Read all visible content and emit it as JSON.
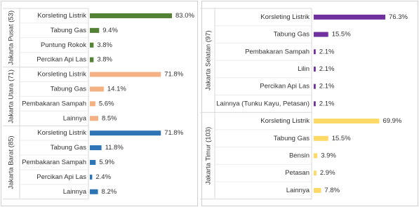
{
  "chart_data": [
    {
      "type": "bar",
      "orientation": "horizontal",
      "groups": [
        {
          "name": "Jakarta Pusat (53)",
          "color": "#548235",
          "categories": [
            "Korsleting Listrik",
            "Tabung Gas",
            "Puntung Rokok",
            "Percikan Api Las"
          ],
          "values": [
            83.0,
            9.4,
            3.8,
            3.8
          ],
          "value_labels": [
            "83.0%",
            "9.4%",
            "3.8%",
            "3.8%"
          ]
        },
        {
          "name": "Jakarta Utara (71)",
          "color": "#f4b183",
          "categories": [
            "Korsleting Listrik",
            "Tabung Gas",
            "Pembakaran Sampah",
            "Lainnya"
          ],
          "values": [
            71.8,
            14.1,
            5.6,
            8.5
          ],
          "value_labels": [
            "71.8%",
            "14.1%",
            "5.6%",
            "8.5%"
          ]
        },
        {
          "name": "Jakarta Barat (85)",
          "color": "#2e75b6",
          "categories": [
            "Korsleting Listrik",
            "Tabung Gas",
            "Pembakaran Sampah",
            "Percikan Api Las",
            "Lainnya"
          ],
          "values": [
            71.8,
            11.8,
            5.9,
            2.4,
            8.2
          ],
          "value_labels": [
            "71.8%",
            "11.8%",
            "5.9%",
            "2.4%",
            "8.2%"
          ]
        }
      ]
    },
    {
      "type": "bar",
      "orientation": "horizontal",
      "groups": [
        {
          "name": "Jakarta Selatan (97)",
          "color": "#7030a0",
          "categories": [
            "Korsleting Listrik",
            "Tabung Gas",
            "Pembakaran Sampah",
            "Lilin",
            "Percikan Api Las",
            "Lainnya (Tunku Kayu, Petasan)"
          ],
          "values": [
            76.3,
            15.5,
            2.1,
            2.1,
            2.1,
            2.1
          ],
          "value_labels": [
            "76.3%",
            "15.5%",
            "2.1%",
            "2.1%",
            "2.1%",
            "2.1%"
          ]
        },
        {
          "name": "Jakarta Timur (103)",
          "color": "#ffd966",
          "categories": [
            "Korsleting Listrik",
            "Tabung Gas",
            "Bensin",
            "Petasan",
            "Lainnya"
          ],
          "values": [
            69.9,
            15.5,
            3.9,
            2.9,
            7.8
          ],
          "value_labels": [
            "69.9%",
            "15.5%",
            "3.9%",
            "2.9%",
            "7.8%"
          ]
        }
      ]
    }
  ]
}
